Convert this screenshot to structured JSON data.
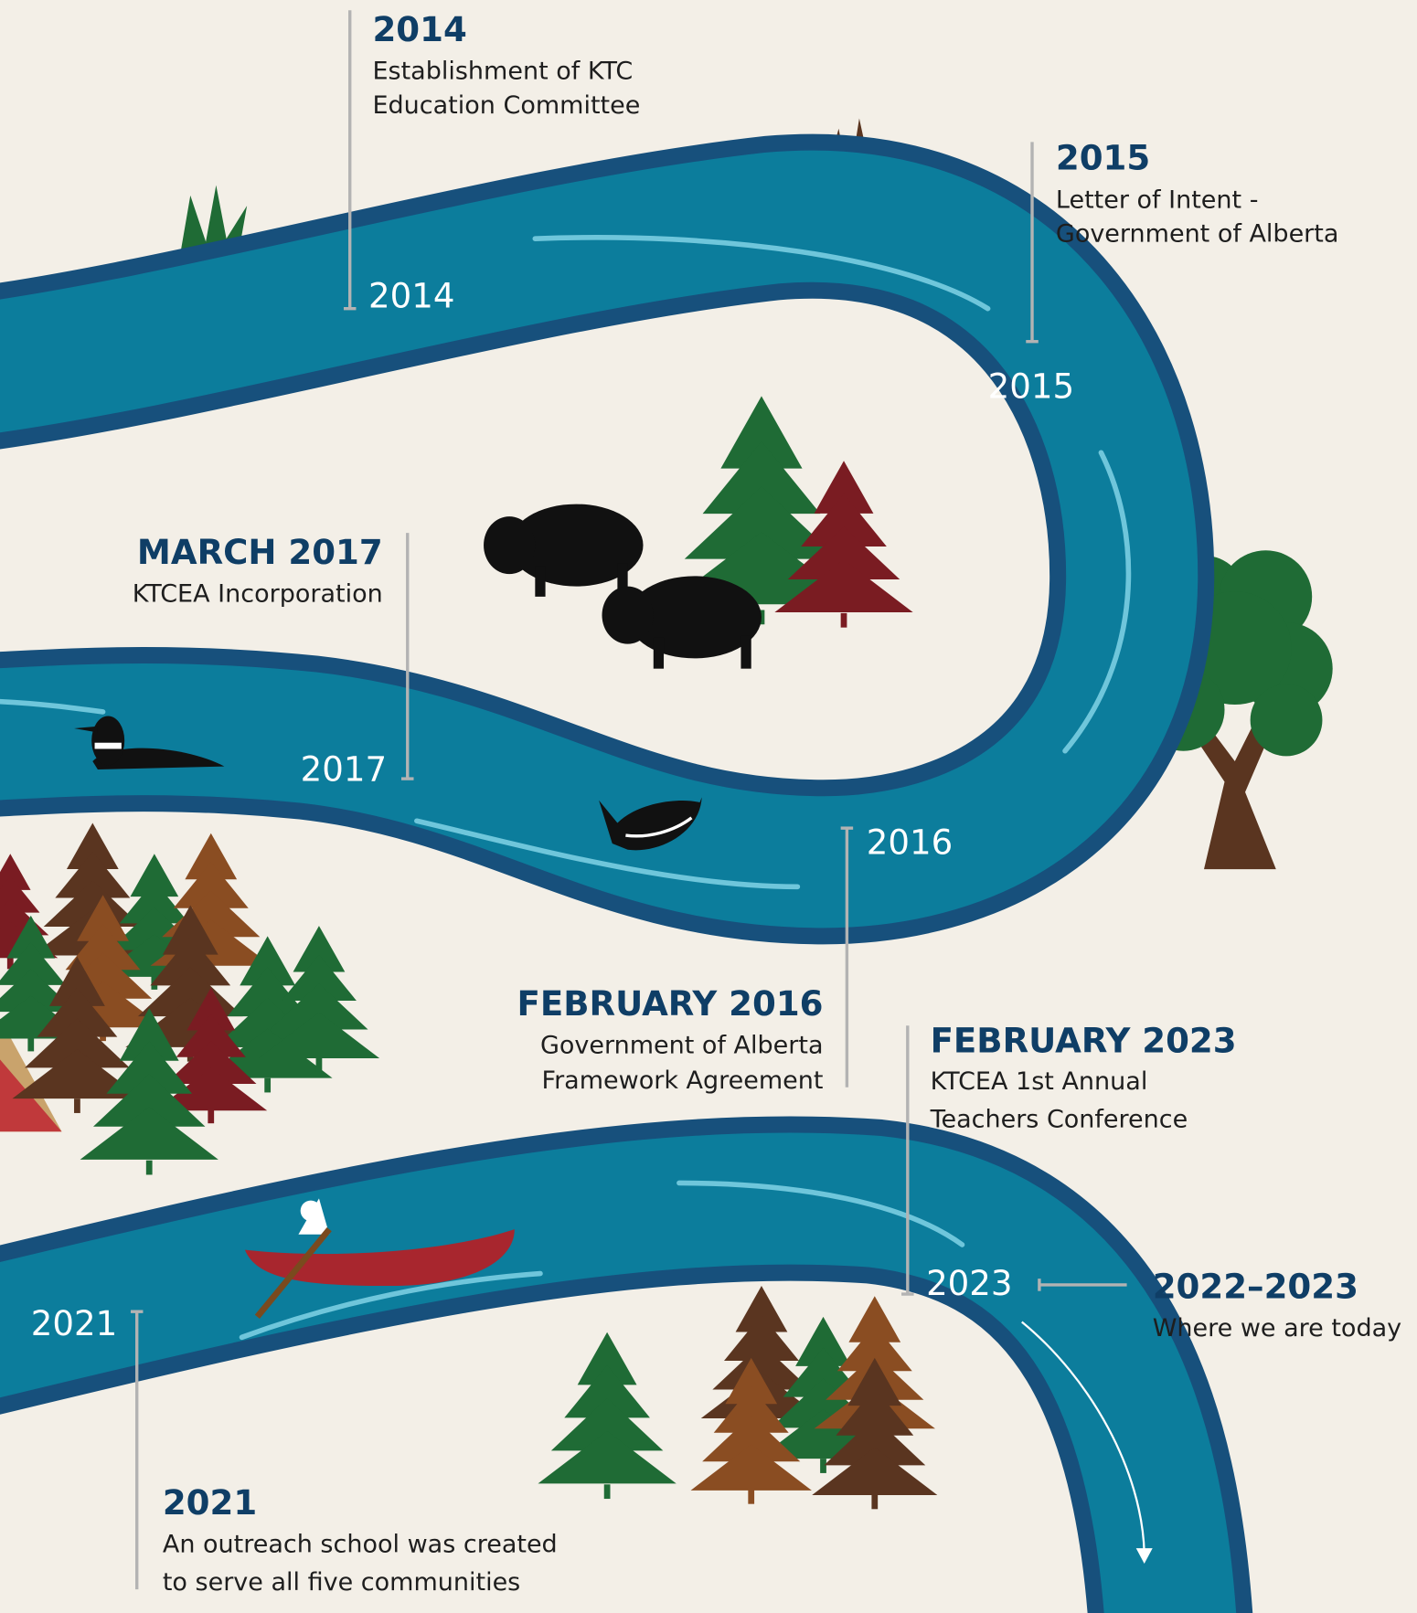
{
  "milestones": [
    {
      "date": "2014",
      "lines": [
        "Establishment of KTC",
        "Education Committee"
      ]
    },
    {
      "date": "2015",
      "lines": [
        "Letter of Intent -",
        "Government of Alberta"
      ]
    },
    {
      "date": "MARCH 2017",
      "lines": [
        "KTCEA Incorporation"
      ]
    },
    {
      "date": "FEBRUARY 2016",
      "lines": [
        "Government of Alberta",
        "Framework Agreement"
      ]
    },
    {
      "date": "FEBRUARY 2023",
      "lines": [
        "KTCEA 1st Annual",
        "Teachers Conference"
      ]
    },
    {
      "date": "2022–2023",
      "lines": [
        "Where we are today"
      ]
    },
    {
      "date": "2021",
      "lines": [
        "An outreach school was created",
        "to serve all five communities"
      ]
    }
  ],
  "river_labels": [
    "2014",
    "2015",
    "2017",
    "2016",
    "2023",
    "2021"
  ]
}
